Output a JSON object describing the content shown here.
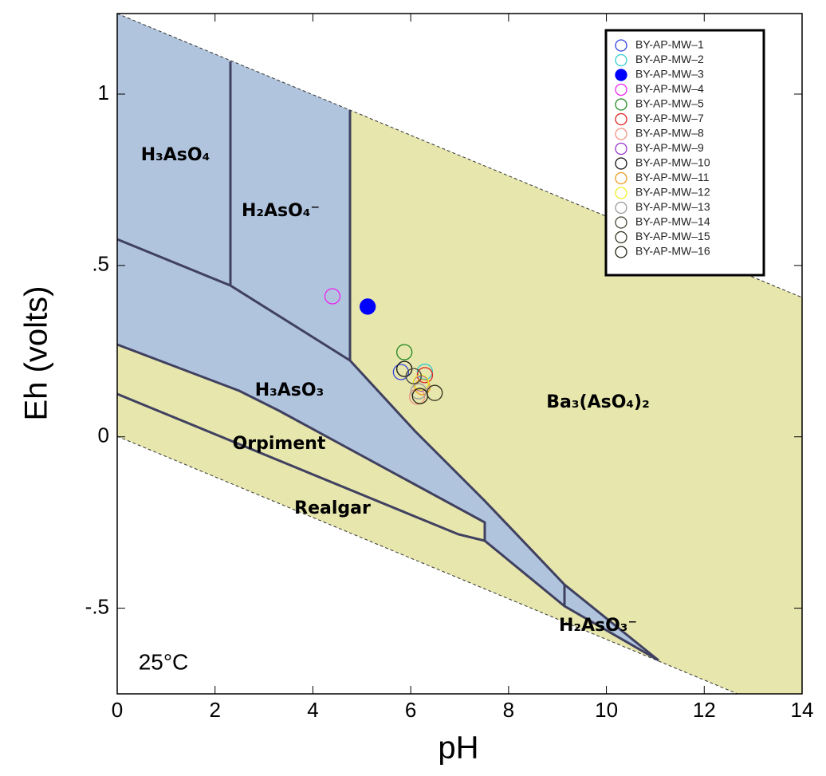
{
  "chart_data": {
    "type": "scatter",
    "xlabel": "pH",
    "ylabel": "Eh (volts)",
    "xlim": [
      0,
      14
    ],
    "ylim": [
      -0.75,
      1.235
    ],
    "xticks": [
      0,
      2,
      4,
      6,
      8,
      10,
      12,
      14
    ],
    "yticks": [
      {
        "value": -0.5,
        "label": "-.5"
      },
      0,
      {
        "value": 0.5,
        "label": ".5"
      },
      1
    ],
    "legend": "upper right",
    "annotations": [
      "H₃AsO₄",
      "H₂AsO₄⁻",
      "H₃AsO₃",
      "Orpiment",
      "Realgar",
      "Ba₃(AsO₄)₂",
      "H₂AsO₃⁻",
      "25°C"
    ],
    "series": [
      {
        "name": "BY-AP-MW–1",
        "color": "#3344dd",
        "filled": false,
        "x": [
          5.8
        ],
        "values": [
          0.189
        ]
      },
      {
        "name": "BY-AP-MW–2",
        "color": "#33cccc",
        "filled": false,
        "x": [
          6.29
        ],
        "values": [
          0.19
        ]
      },
      {
        "name": "BY-AP-MW–3",
        "color": "#0000ff",
        "filled": true,
        "x": [
          5.12
        ],
        "values": [
          0.38
        ]
      },
      {
        "name": "BY-AP-MW–4",
        "color": "#ee22ee",
        "filled": false,
        "x": [
          4.4
        ],
        "values": [
          0.41
        ]
      },
      {
        "name": "BY-AP-MW–5",
        "color": "#228822",
        "filled": false,
        "x": [
          5.87
        ],
        "values": [
          0.247
        ]
      },
      {
        "name": "BY-AP-MW–7",
        "color": "#dd2222",
        "filled": false,
        "x": [
          6.29
        ],
        "values": [
          0.18
        ]
      },
      {
        "name": "BY-AP-MW–8",
        "color": "#f09080",
        "filled": false,
        "x": [
          6.13
        ],
        "values": [
          0.117
        ]
      },
      {
        "name": "BY-AP-MW–9",
        "color": "#9933cc",
        "filled": false,
        "x": [
          6.21
        ],
        "values": [
          0.156
        ]
      },
      {
        "name": "BY-AP-MW–10",
        "color": "#111111",
        "filled": false,
        "x": [
          5.87
        ],
        "values": [
          0.198
        ]
      },
      {
        "name": "BY-AP-MW–11",
        "color": "#ee9922",
        "filled": false,
        "x": [
          6.24
        ],
        "values": [
          0.145
        ]
      },
      {
        "name": "BY-AP-MW–12",
        "color": "#eeee22",
        "filled": false,
        "x": [
          6.21
        ],
        "values": [
          0.158
        ]
      },
      {
        "name": "BY-AP-MW–13",
        "color": "#999999",
        "filled": false,
        "x": [
          6.16
        ],
        "values": [
          0.133
        ]
      },
      {
        "name": "BY-AP-MW–14",
        "color": "#444433",
        "filled": false,
        "x": [
          6.06
        ],
        "values": [
          0.177
        ]
      },
      {
        "name": "BY-AP-MW–15",
        "color": "#333322",
        "filled": false,
        "x": [
          6.49
        ],
        "values": [
          0.128
        ]
      },
      {
        "name": "BY-AP-MW–16",
        "color": "#222211",
        "filled": false,
        "x": [
          6.19
        ],
        "values": [
          0.119
        ]
      }
    ]
  }
}
